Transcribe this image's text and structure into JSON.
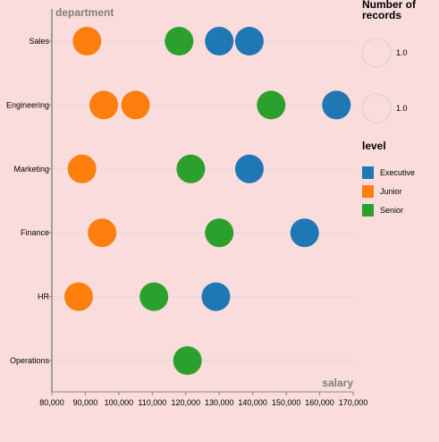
{
  "chart_data": {
    "type": "scatter",
    "xlabel": "salary",
    "ylabel": "department",
    "xlim": [
      80000,
      170000
    ],
    "x_ticks": [
      "80,000",
      "90,000",
      "100,000",
      "110,000",
      "120,000",
      "130,000",
      "140,000",
      "150,000",
      "160,000",
      "170,000"
    ],
    "x_tick_values": [
      80000,
      90000,
      100000,
      110000,
      120000,
      130000,
      140000,
      150000,
      160000,
      170000
    ],
    "categories": [
      "Sales",
      "Engineering",
      "Marketing",
      "Finance",
      "HR",
      "Operations"
    ],
    "grid": "horizontal",
    "size_legend": {
      "title_lines": [
        "Number of",
        "records"
      ],
      "entries": [
        "1.0",
        "1.0"
      ]
    },
    "color_legend": {
      "title": "level",
      "placement": "right",
      "entries": [
        {
          "label": "Executive",
          "color": "#1f77b4"
        },
        {
          "label": "Junior",
          "color": "#ff7f0e"
        },
        {
          "label": "Senior",
          "color": "#2ca02c"
        }
      ]
    },
    "points": [
      {
        "department": "Sales",
        "salary": 90500,
        "level": "Junior"
      },
      {
        "department": "Sales",
        "salary": 118000,
        "level": "Senior"
      },
      {
        "department": "Sales",
        "salary": 130000,
        "level": "Executive"
      },
      {
        "department": "Sales",
        "salary": 139000,
        "level": "Executive"
      },
      {
        "department": "Engineering",
        "salary": 95500,
        "level": "Junior"
      },
      {
        "department": "Engineering",
        "salary": 105000,
        "level": "Junior"
      },
      {
        "department": "Engineering",
        "salary": 145500,
        "level": "Senior"
      },
      {
        "department": "Engineering",
        "salary": 165000,
        "level": "Executive"
      },
      {
        "department": "Marketing",
        "salary": 89000,
        "level": "Junior"
      },
      {
        "department": "Marketing",
        "salary": 121500,
        "level": "Senior"
      },
      {
        "department": "Marketing",
        "salary": 139000,
        "level": "Executive"
      },
      {
        "department": "Finance",
        "salary": 95000,
        "level": "Junior"
      },
      {
        "department": "Finance",
        "salary": 130000,
        "level": "Senior"
      },
      {
        "department": "Finance",
        "salary": 155500,
        "level": "Executive"
      },
      {
        "department": "HR",
        "salary": 88000,
        "level": "Junior"
      },
      {
        "department": "HR",
        "salary": 110500,
        "level": "Senior"
      },
      {
        "department": "HR",
        "salary": 129000,
        "level": "Executive"
      },
      {
        "department": "Operations",
        "salary": 120500,
        "level": "Senior"
      }
    ]
  }
}
